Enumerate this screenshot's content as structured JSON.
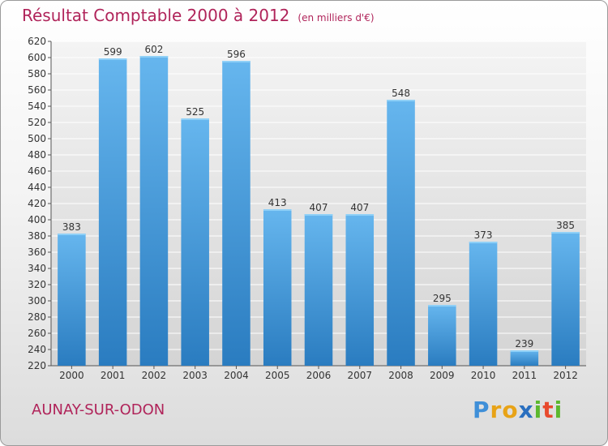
{
  "title": "Résultat Comptable 2000 à 2012",
  "unit": "(en milliers d'€)",
  "town": "AUNAY-SUR-ODON",
  "logo": {
    "letters": [
      "P",
      "r",
      "o",
      "x",
      "i",
      "t",
      "i"
    ],
    "colors": [
      "#3f8fd8",
      "#e8a317",
      "#e8a317",
      "#2a6fbf",
      "#5cb82e",
      "#e84a2e",
      "#5cb82e"
    ]
  },
  "colors": {
    "bar_light": "#66b6ee",
    "bar_dark": "#2a7cc0",
    "accent": "#b0245a"
  },
  "chart_data": {
    "type": "bar",
    "title": "Résultat Comptable 2000 à 2012",
    "xlabel": "",
    "ylabel": "",
    "categories": [
      "2000",
      "2001",
      "2002",
      "2003",
      "2004",
      "2005",
      "2006",
      "2007",
      "2008",
      "2009",
      "2010",
      "2011",
      "2012"
    ],
    "values": [
      383,
      599,
      602,
      525,
      596,
      413,
      407,
      407,
      548,
      295,
      373,
      239,
      385
    ],
    "ylim": [
      220,
      620
    ],
    "yticks": [
      220,
      240,
      260,
      280,
      300,
      320,
      340,
      360,
      380,
      400,
      420,
      440,
      460,
      480,
      500,
      520,
      540,
      560,
      580,
      600,
      620
    ],
    "grid": true
  }
}
